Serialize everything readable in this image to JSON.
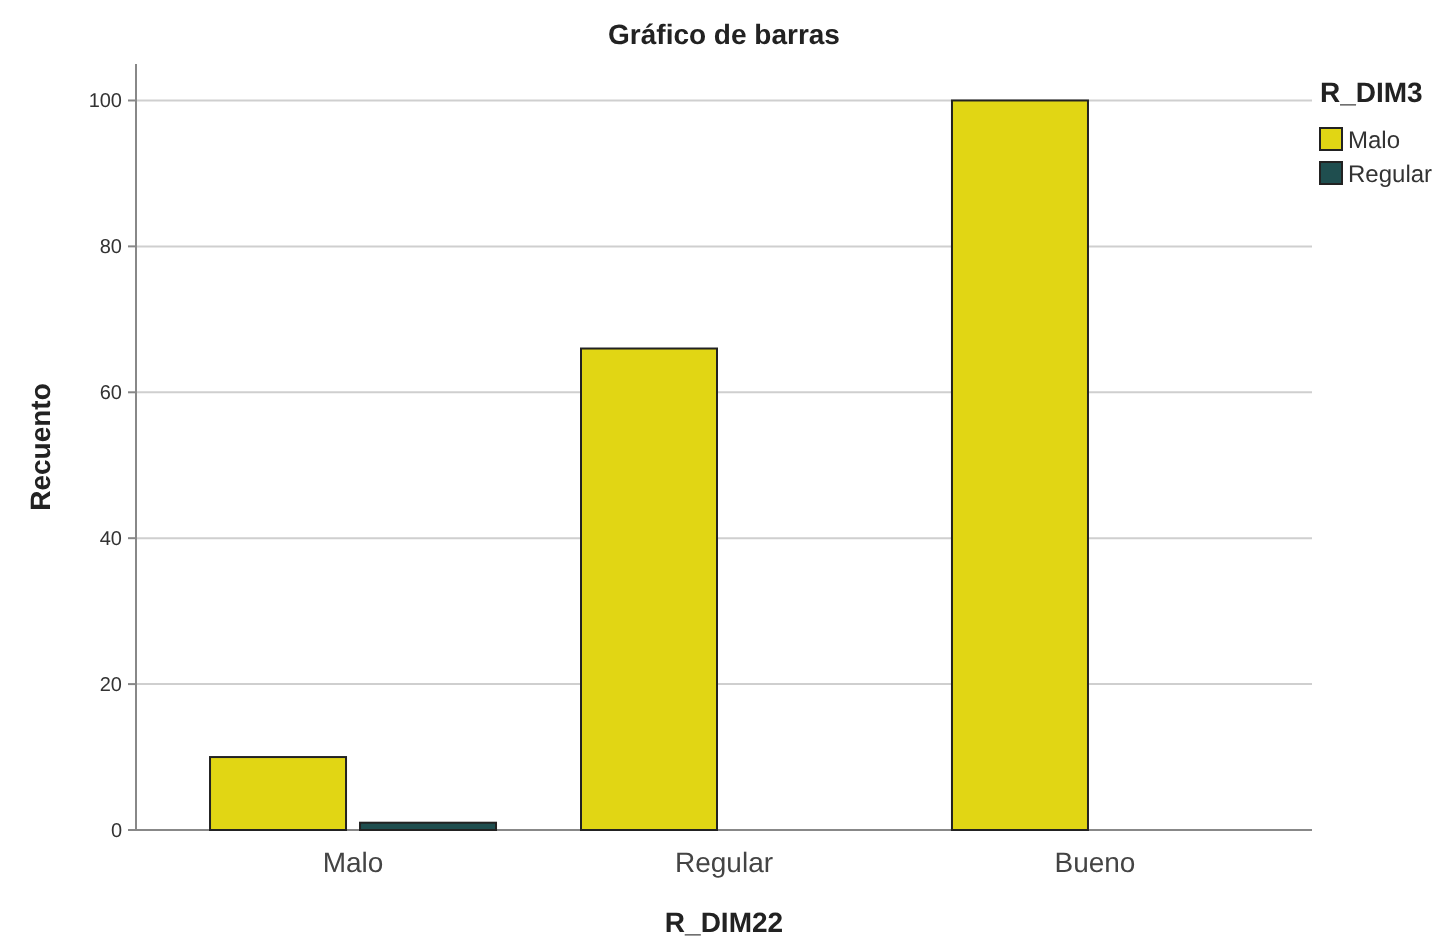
{
  "chart_data": {
    "type": "bar",
    "title": "Gráfico de barras",
    "xlabel": "R_DIM22",
    "ylabel": "Recuento",
    "legend_title": "R_DIM3",
    "categories": [
      "Malo",
      "Regular",
      "Bueno"
    ],
    "series": [
      {
        "name": "Malo",
        "color": "#e1d614",
        "values": [
          10,
          66,
          100
        ]
      },
      {
        "name": "Regular",
        "color": "#1f4e4f",
        "values": [
          1,
          null,
          null
        ]
      }
    ],
    "ylim": [
      0,
      105
    ],
    "yticks": [
      0,
      20,
      40,
      60,
      80,
      100
    ],
    "grid": "y",
    "legend": "top right"
  }
}
